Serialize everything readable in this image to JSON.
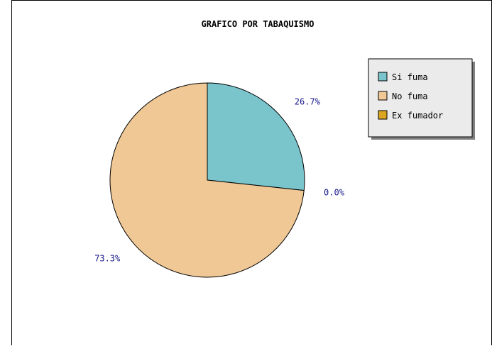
{
  "chart_data": {
    "type": "pie",
    "title": "GRAFICO POR TABAQUISMO",
    "series": [
      {
        "name": "Si fuma",
        "value": 26.7,
        "label": "26.7%",
        "color": "#7ac4cc"
      },
      {
        "name": "Ex fumador",
        "value": 0.0,
        "label": "0.0%",
        "color": "#daa520"
      },
      {
        "name": "No fuma",
        "value": 73.3,
        "label": "73.3%",
        "color": "#f0c896"
      }
    ],
    "legend": {
      "placement": "right",
      "entries": [
        {
          "name": "Si fuma",
          "color": "#7ac4cc"
        },
        {
          "name": "No fuma",
          "color": "#f0c896"
        },
        {
          "name": "Ex fumador",
          "color": "#daa520"
        }
      ]
    }
  }
}
